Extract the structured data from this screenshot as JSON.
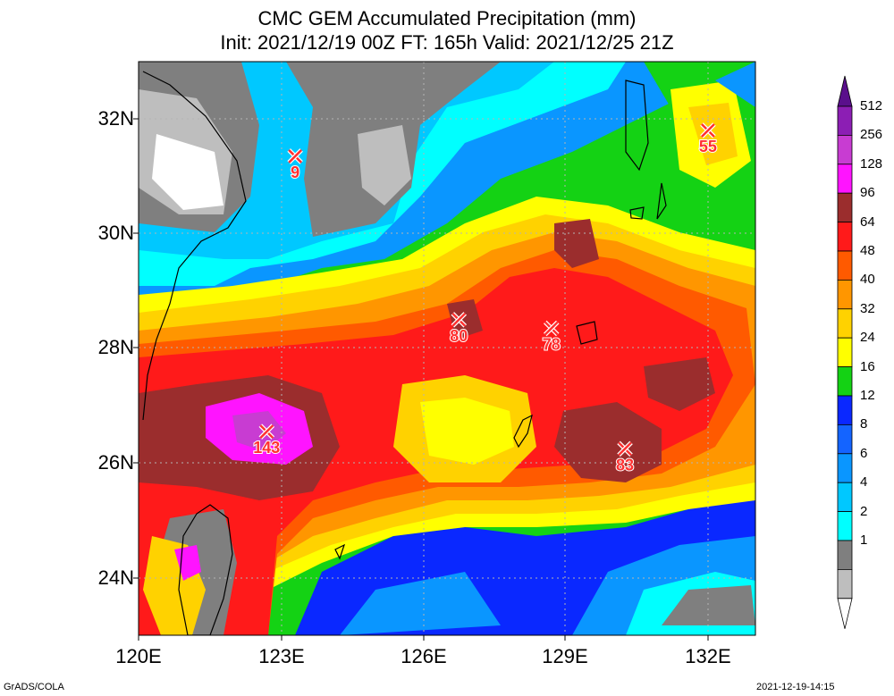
{
  "title": {
    "line1": "CMC GEM Accumulated Precipitation (mm)",
    "line2": "Init: 2021/12/19 00Z  FT: 165h  Valid: 2021/12/25 21Z"
  },
  "axes": {
    "lon_ticks": [
      "120E",
      "123E",
      "126E",
      "129E",
      "132E"
    ],
    "lat_ticks": [
      "32N",
      "30N",
      "28N",
      "26N",
      "24N"
    ],
    "lon_range": [
      120,
      133
    ],
    "lat_range": [
      23,
      33
    ]
  },
  "colorbar": {
    "levels": [
      "512",
      "256",
      "128",
      "96",
      "64",
      "48",
      "40",
      "32",
      "24",
      "16",
      "12",
      "8",
      "6",
      "4",
      "2",
      "1"
    ],
    "colors": [
      "#5a0f8c",
      "#8c1eb4",
      "#c83cd2",
      "#ff14ff",
      "#9b2d2d",
      "#ff1a1a",
      "#ff5a00",
      "#ff9600",
      "#ffd200",
      "#ffff00",
      "#14d214",
      "#0a28ff",
      "#1464ff",
      "#0a96ff",
      "#00c8ff",
      "#00ffff",
      "#7f7f7f",
      "#bebebe",
      "#ffffff"
    ]
  },
  "markers": [
    {
      "label": "9",
      "lon": 123.3,
      "lat": 31.35
    },
    {
      "label": "55",
      "lon": 132.0,
      "lat": 31.8
    },
    {
      "label": "80",
      "lon": 126.75,
      "lat": 28.5
    },
    {
      "label": "78",
      "lon": 128.7,
      "lat": 28.35
    },
    {
      "label": "143",
      "lon": 122.7,
      "lat": 26.55
    },
    {
      "label": "83",
      "lon": 130.25,
      "lat": 26.25
    }
  ],
  "footer": {
    "left": "GrADS/COLA",
    "right": "2021-12-19-14:15"
  }
}
